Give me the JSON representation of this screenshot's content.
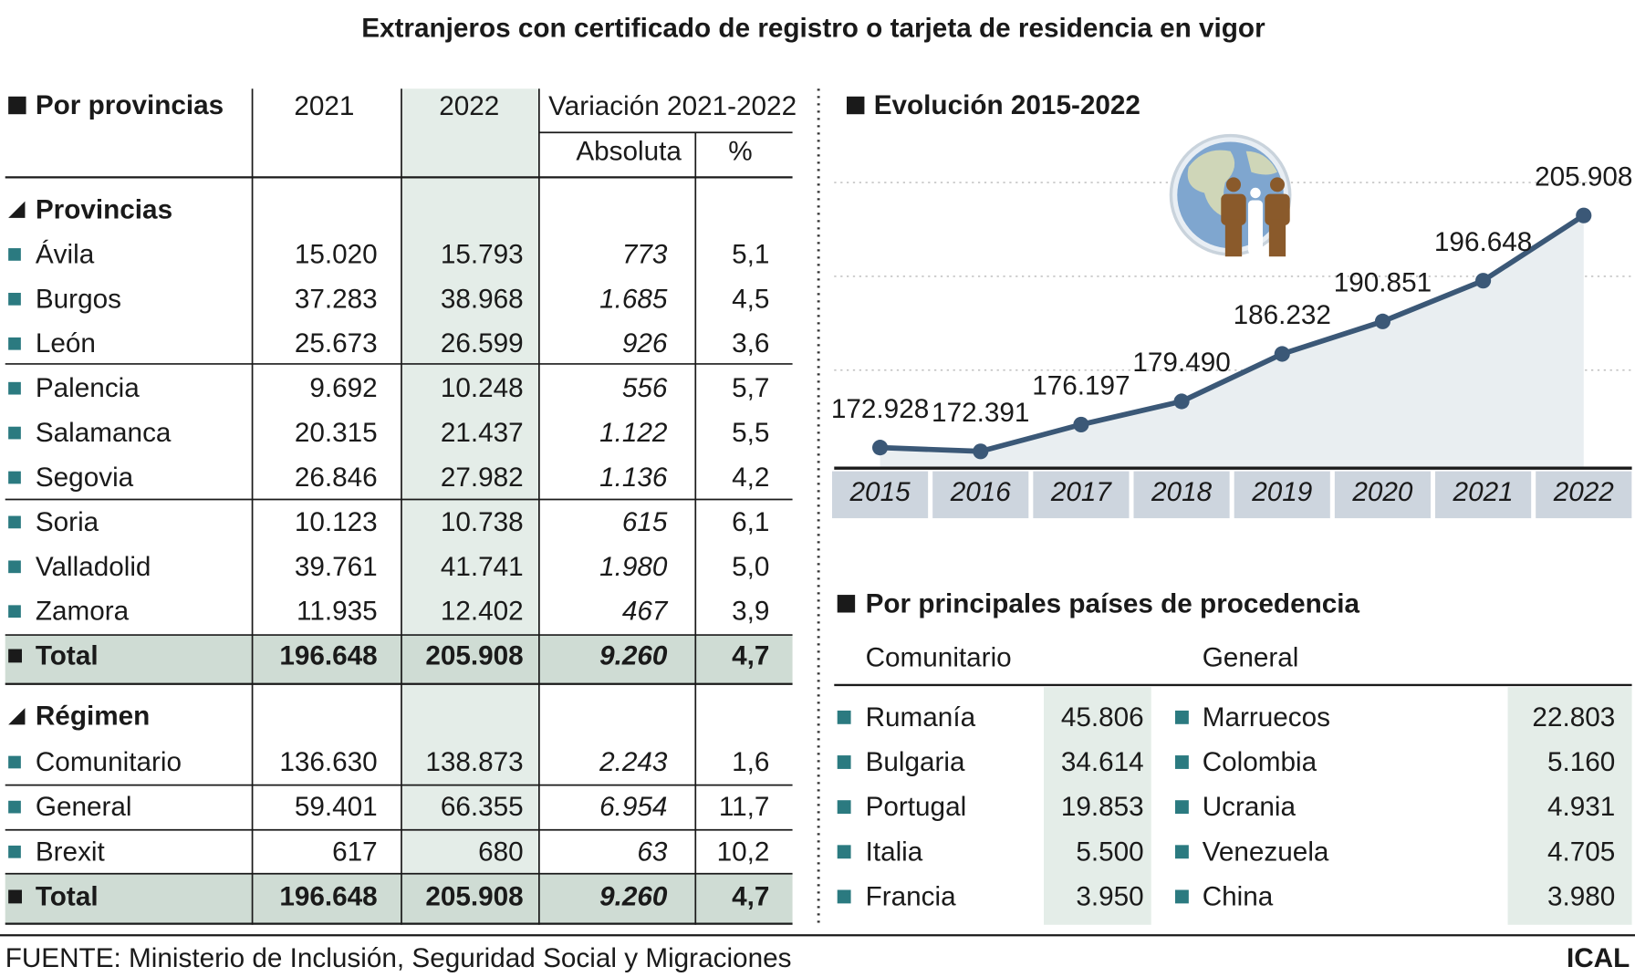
{
  "title": "Extranjeros con certificado de registro o tarjeta de residencia en vigor",
  "provinces_table": {
    "header": {
      "label": "Por provincias",
      "year1": "2021",
      "year2": "2022",
      "variation": "Variación 2021-2022",
      "absolute": "Absoluta",
      "percent": "%"
    },
    "sections": [
      {
        "name": "Provincias",
        "rows": [
          [
            "Ávila",
            "15.020",
            "15.793",
            "773",
            "5,1"
          ],
          [
            "Burgos",
            "37.283",
            "38.968",
            "1.685",
            "4,5"
          ],
          [
            "León",
            "25.673",
            "26.599",
            "926",
            "3,6"
          ],
          [
            "Palencia",
            "9.692",
            "10.248",
            "556",
            "5,7"
          ],
          [
            "Salamanca",
            "20.315",
            "21.437",
            "1.122",
            "5,5"
          ],
          [
            "Segovia",
            "26.846",
            "27.982",
            "1.136",
            "4,2"
          ],
          [
            "Soria",
            "10.123",
            "10.738",
            "615",
            "6,1"
          ],
          [
            "Valladolid",
            "39.761",
            "41.741",
            "1.980",
            "5,0"
          ],
          [
            "Zamora",
            "11.935",
            "12.402",
            "467",
            "3,9"
          ]
        ],
        "total": [
          "Total",
          "196.648",
          "205.908",
          "9.260",
          "4,7"
        ]
      },
      {
        "name": "Régimen",
        "rows": [
          [
            "Comunitario",
            "136.630",
            "138.873",
            "2.243",
            "1,6"
          ],
          [
            "General",
            "59.401",
            "66.355",
            "6.954",
            "11,7"
          ],
          [
            "Brexit",
            "617",
            "680",
            "63",
            "10,2"
          ]
        ],
        "total": [
          "Total",
          "196.648",
          "205.908",
          "9.260",
          "4,7"
        ]
      }
    ]
  },
  "chart_data": {
    "type": "line",
    "title": "Evolución 2015-2022",
    "categories": [
      "2015",
      "2016",
      "2017",
      "2018",
      "2019",
      "2020",
      "2021",
      "2022"
    ],
    "values": [
      172928,
      172391,
      176197,
      179490,
      186232,
      190851,
      196648,
      205908
    ],
    "value_labels": [
      "172.928",
      "172.391",
      "176.197",
      "179.490",
      "186.232",
      "190.851",
      "196.648",
      "205.908"
    ],
    "color": "#3b5877",
    "area_color": "#e9eef1",
    "ylim": [
      170000,
      210000
    ]
  },
  "countries": {
    "heading": "Por principales países de procedencia",
    "groups": [
      {
        "name": "Comunitario",
        "rows": [
          [
            "Rumanía",
            "45.806"
          ],
          [
            "Bulgaria",
            "34.614"
          ],
          [
            "Portugal",
            "19.853"
          ],
          [
            "Italia",
            "5.500"
          ],
          [
            "Francia",
            "3.950"
          ]
        ]
      },
      {
        "name": "General",
        "rows": [
          [
            "Marruecos",
            "22.803"
          ],
          [
            "Colombia",
            "5.160"
          ],
          [
            "Ucrania",
            "4.931"
          ],
          [
            "Venezuela",
            "4.705"
          ],
          [
            "China",
            "3.980"
          ]
        ]
      }
    ]
  },
  "source": "FUENTE: Ministerio de Inclusión, Seguridad Social y Migraciones",
  "credit": "ICAL"
}
